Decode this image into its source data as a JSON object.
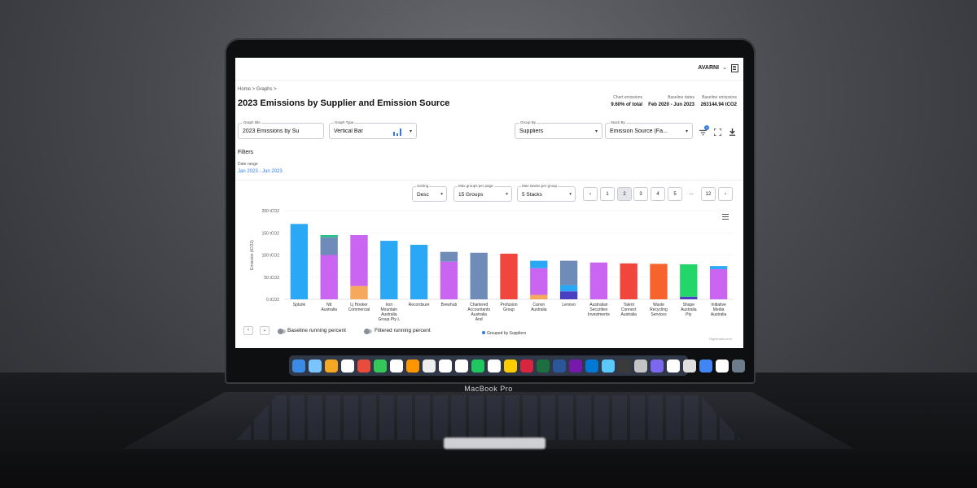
{
  "device": {
    "model_label": "MacBook Pro"
  },
  "topbar": {
    "account": "AVARNI"
  },
  "breadcrumb": "Home > Graphs >",
  "page_title": "2023 Emissions by Supplier and Emission Source",
  "stats": [
    {
      "label": "Chart emissions",
      "value": "9.60% of total"
    },
    {
      "label": "Baseline dates",
      "value": "Feb 2020 - Jun 2023"
    },
    {
      "label": "Baseline emissions",
      "value": "263144.94 tCO2"
    }
  ],
  "controls": {
    "graph_title": {
      "label": "Graph title",
      "value": "2023 Emissions by Su"
    },
    "graph_type": {
      "label": "Graph Type",
      "value": "Vertical Bar"
    },
    "group_by": {
      "label": "Group By",
      "value": "Suppliers"
    },
    "stack_by": {
      "label": "Stack By",
      "value": "Emission Source (Fa..."
    },
    "filter_badge": "1"
  },
  "filters": {
    "title": "Filters",
    "date_range_label": "Date range",
    "date_range_value": "Jan 2023 - Jun 2023"
  },
  "chart_controls": {
    "sorting": {
      "label": "Sorting",
      "value": "Desc"
    },
    "max_groups": {
      "label": "Max groups per page",
      "value": "15 Groups"
    },
    "max_stacks": {
      "label": "Max stacks per group",
      "value": "5 Stacks"
    }
  },
  "pagination": {
    "pages": [
      "1",
      "2",
      "3",
      "4",
      "5",
      "...",
      "12"
    ],
    "active": "2",
    "prev": "‹",
    "next": "›"
  },
  "footer": {
    "baseline_toggle": "Baseline running percent",
    "filtered_toggle": "Filtered running percent",
    "legend": "Grouped by Suppliers",
    "credit": "Highcharts.com"
  },
  "colors": {
    "blue": "#2ba8f5",
    "purple": "#c965f0",
    "slate": "#6f8cb8",
    "orange": "#f6a85c",
    "red": "#f0463c",
    "deep_orange": "#f7632c",
    "green": "#22d66a",
    "navy": "#4a3fc2",
    "teal_green": "#27c08a"
  },
  "chart_data": {
    "type": "bar",
    "stacked": true,
    "ylabel": "Emission (tCO2)",
    "ylim": [
      0,
      200
    ],
    "yticks": [
      "0 tCO2",
      "50 tCO2",
      "100 tCO2",
      "150 tCO2",
      "200 tCO2"
    ],
    "categories": [
      [
        "Splunk"
      ],
      [
        "Ntt",
        "Australia"
      ],
      [
        "Lj Hooker",
        "Commercial"
      ],
      [
        "Iron",
        "Mountain",
        "Australia",
        "Group Pty L"
      ],
      [
        "Recordsure"
      ],
      [
        "Brewhub"
      ],
      [
        "Chartered",
        "Accountants",
        "Australia",
        "And"
      ],
      [
        "Profusion",
        "Group"
      ],
      [
        "Canon",
        "Australia"
      ],
      [
        "Lenovo"
      ],
      [
        "Australian",
        "Securities",
        "Investments"
      ],
      [
        "Talent",
        "Connect",
        "Australia"
      ],
      [
        "Waste",
        "Recycling",
        "Services"
      ],
      [
        "Shape",
        "Australia",
        "Pty"
      ],
      [
        "Initiative",
        "Media",
        "Australia"
      ]
    ],
    "stacks": [
      [
        {
          "value": 170,
          "color": "blue"
        }
      ],
      [
        {
          "value": 100,
          "color": "purple"
        },
        {
          "value": 40,
          "color": "slate"
        },
        {
          "value": 5,
          "color": "teal_green"
        }
      ],
      [
        {
          "value": 30,
          "color": "orange"
        },
        {
          "value": 115,
          "color": "purple"
        }
      ],
      [
        {
          "value": 132,
          "color": "blue"
        }
      ],
      [
        {
          "value": 123,
          "color": "blue"
        }
      ],
      [
        {
          "value": 85,
          "color": "purple"
        },
        {
          "value": 22,
          "color": "slate"
        }
      ],
      [
        {
          "value": 105,
          "color": "slate"
        }
      ],
      [
        {
          "value": 103,
          "color": "red"
        }
      ],
      [
        {
          "value": 10,
          "color": "orange"
        },
        {
          "value": 60,
          "color": "purple"
        },
        {
          "value": 17,
          "color": "blue"
        }
      ],
      [
        {
          "value": 18,
          "color": "navy"
        },
        {
          "value": 14,
          "color": "blue"
        },
        {
          "value": 55,
          "color": "slate"
        }
      ],
      [
        {
          "value": 83,
          "color": "purple"
        }
      ],
      [
        {
          "value": 81,
          "color": "red"
        }
      ],
      [
        {
          "value": 80,
          "color": "deep_orange"
        }
      ],
      [
        {
          "value": 6,
          "color": "navy"
        },
        {
          "value": 73,
          "color": "green"
        }
      ],
      [
        {
          "value": 68,
          "color": "purple"
        },
        {
          "value": 7,
          "color": "blue"
        }
      ]
    ]
  },
  "dock": [
    "#3b8be6",
    "#7ac4ff",
    "#f5a623",
    "#ffffff",
    "#e94b3c",
    "#34c759",
    "#ffffff",
    "#ff9500",
    "#eeeeee",
    "#ffffff",
    "#ffffff",
    "#1ec760",
    "#ffffff",
    "#ffcc00",
    "#d7263d",
    "#1d6f42",
    "#2b579a",
    "#7719aa",
    "#0078d4",
    "#5ac8fa",
    "#3a3a3a",
    "#c4c4c4",
    "#7b68ee",
    "#ffffff",
    "#e0e0e0",
    "#4285f4",
    "#ffffff",
    "#6e7b8b"
  ]
}
